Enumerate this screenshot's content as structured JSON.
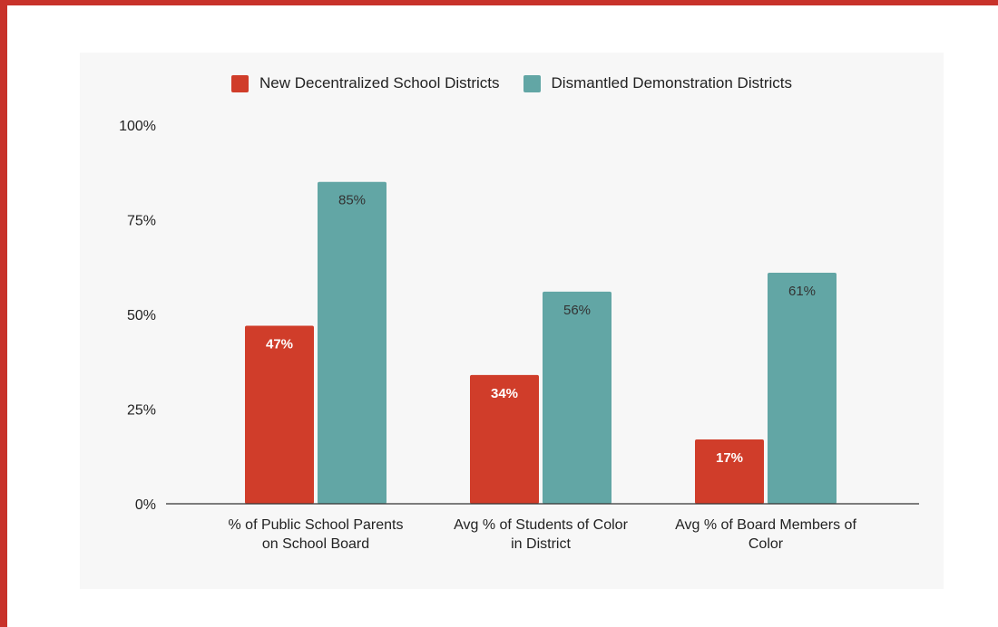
{
  "colors": {
    "frame": "#c8322a",
    "series_new": "#d03d2a",
    "series_dismantled": "#62a6a5",
    "label_on_new": "#ffffff",
    "label_on_dismantled": "#333333"
  },
  "chart_data": {
    "type": "bar",
    "title": "",
    "xlabel": "",
    "ylabel": "",
    "ylim": [
      0,
      100
    ],
    "y_ticks": [
      "0%",
      "25%",
      "50%",
      "75%",
      "100%"
    ],
    "y_tick_values": [
      0,
      25,
      50,
      75,
      100
    ],
    "legend_position": "top-center",
    "grid": false,
    "categories": [
      [
        "% of Public School Parents",
        "on School Board"
      ],
      [
        "Avg % of Students of Color",
        "in District"
      ],
      [
        "Avg % of Board Members of",
        "Color"
      ]
    ],
    "series": [
      {
        "name": "New Decentralized School Districts",
        "values": [
          47,
          34,
          17
        ],
        "labels": [
          "47%",
          "34%",
          "17%"
        ]
      },
      {
        "name": "Dismantled Demonstration Districts",
        "values": [
          85,
          56,
          61
        ],
        "labels": [
          "85%",
          "56%",
          "61%"
        ]
      }
    ]
  }
}
